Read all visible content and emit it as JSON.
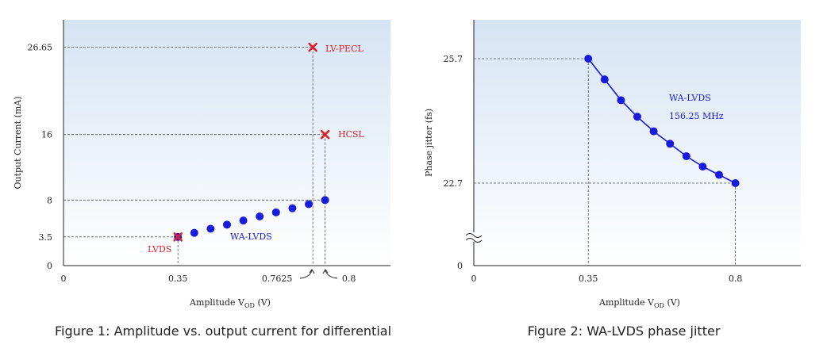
{
  "chart_data": [
    {
      "type": "scatter",
      "caption": "Figure 1: Amplitude vs. output current for differential",
      "xlabel": "Amplitude V",
      "xlabel_sub": "OD",
      "xlabel_unit": " (V)",
      "ylabel": "Output Current (mA)",
      "xlim": [
        0,
        1.0
      ],
      "ylim": [
        0,
        30
      ],
      "xticks": [
        {
          "value": 0,
          "label": "0"
        },
        {
          "value": 0.35,
          "label": "0.35"
        },
        {
          "value": 0.7625,
          "label": "0.7625"
        },
        {
          "value": 0.8,
          "label": "0.8"
        }
      ],
      "yticks": [
        {
          "value": 0,
          "label": "0"
        },
        {
          "value": 3.5,
          "label": "3.5"
        },
        {
          "value": 8,
          "label": "8"
        },
        {
          "value": 16,
          "label": "16"
        },
        {
          "value": 26.65,
          "label": "26.65"
        }
      ],
      "series": [
        {
          "name": "WA-LVDS",
          "color": "#1a1adc",
          "marker": "circle",
          "x": [
            0.35,
            0.4,
            0.45,
            0.5,
            0.55,
            0.6,
            0.65,
            0.7,
            0.75,
            0.8
          ],
          "y": [
            3.5,
            4.0,
            4.5,
            5.0,
            5.5,
            6.0,
            6.5,
            7.0,
            7.5,
            8.0
          ]
        }
      ],
      "markers": [
        {
          "name": "LVDS",
          "x": 0.35,
          "y": 3.5,
          "color": "#e0202a"
        },
        {
          "name": "LV-PECL",
          "x": 0.7625,
          "y": 26.65,
          "color": "#e0202a"
        },
        {
          "name": "HCSL",
          "x": 0.8,
          "y": 16,
          "color": "#e0202a"
        }
      ],
      "annotations": [
        {
          "text": "WA-LVDS",
          "color": "#1a1adc"
        },
        {
          "text": "LVDS",
          "color": "#e0202a"
        },
        {
          "text": "LV-PECL",
          "color": "#e0202a"
        },
        {
          "text": "HCSL",
          "color": "#e0202a"
        }
      ]
    },
    {
      "type": "line",
      "caption": "Figure 2: WA-LVDS phase jitter",
      "xlabel": "Amplitude V",
      "xlabel_sub": "OD",
      "xlabel_unit": " (V)",
      "ylabel": "Phase jitter (fs)",
      "xlim": [
        0,
        1.0
      ],
      "ylim_note": "axis break between 0 and 22.7",
      "xticks": [
        {
          "value": 0,
          "label": "0"
        },
        {
          "value": 0.35,
          "label": "0.35"
        },
        {
          "value": 0.8,
          "label": "0.8"
        }
      ],
      "yticks": [
        {
          "value": 0,
          "label": "0"
        },
        {
          "value": 22.7,
          "label": "22.7"
        },
        {
          "value": 25.7,
          "label": "25.7"
        }
      ],
      "series": [
        {
          "name": "WA-LVDS 156.25 MHz",
          "color": "#1a1adc",
          "x": [
            0.35,
            0.4,
            0.45,
            0.5,
            0.55,
            0.6,
            0.65,
            0.7,
            0.75,
            0.8
          ],
          "y": [
            25.7,
            25.2,
            24.7,
            24.3,
            23.95,
            23.65,
            23.35,
            23.1,
            22.9,
            22.7
          ]
        }
      ],
      "annotations": [
        {
          "text": "WA-LVDS",
          "color": "#1a1adc"
        },
        {
          "text": "156.25 MHz",
          "color": "#1a1adc"
        }
      ]
    }
  ]
}
